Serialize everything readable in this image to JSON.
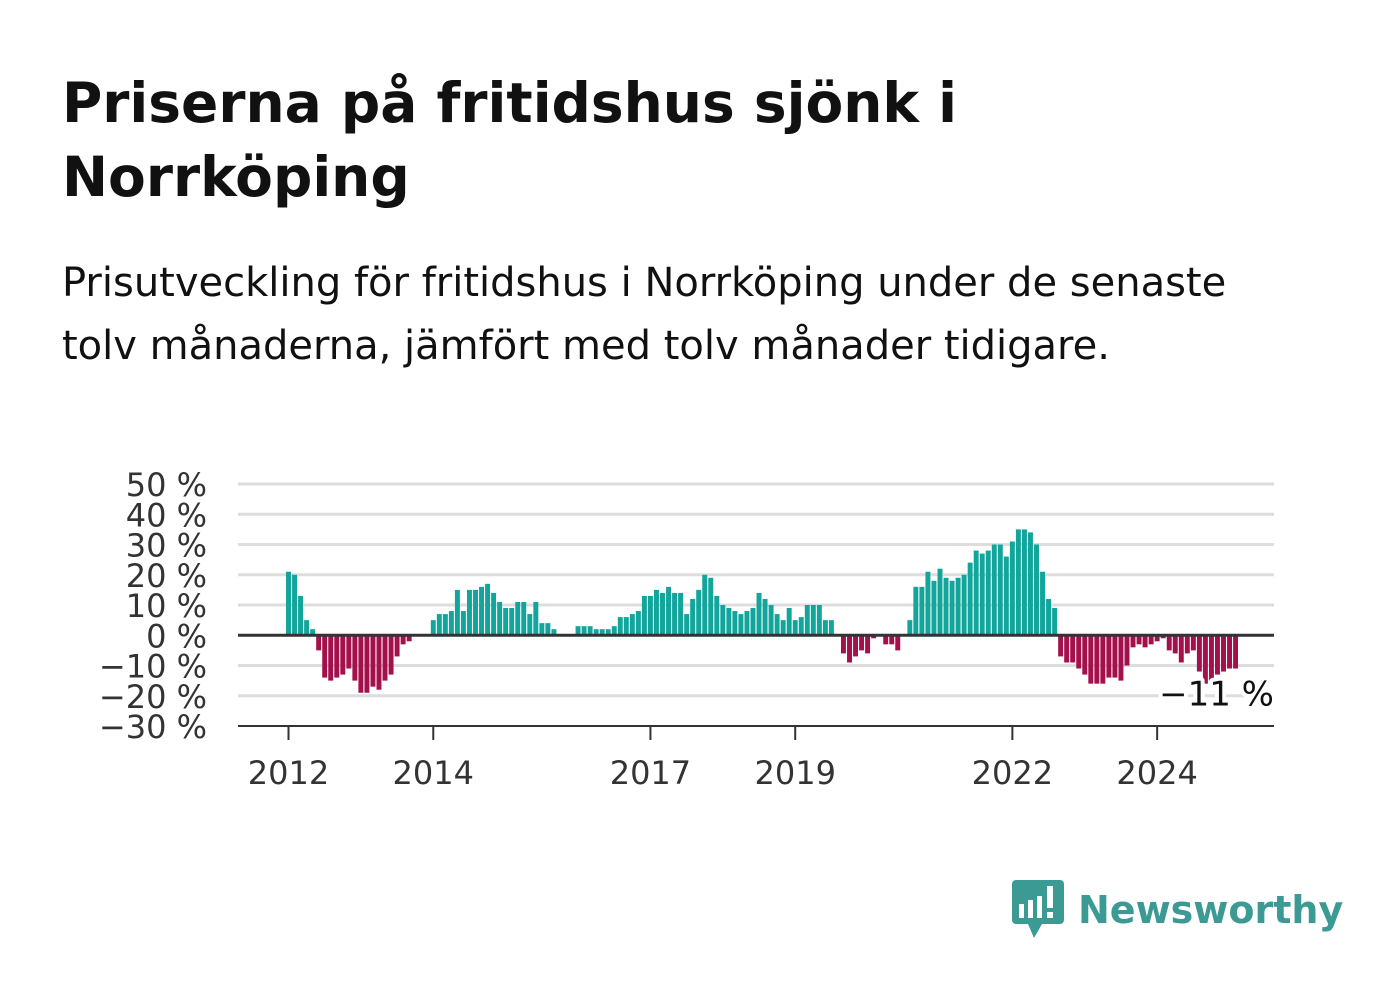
{
  "title": "Priserna på fritidshus sjönk i Norrköping",
  "subtitle": "Prisutveckling för fritidshus i Norrköping under de senaste tolv månaderna, jämfört med tolv månader tidigare.",
  "brand": {
    "name": "Newsworthy",
    "icon": "newsworthy-logo-icon",
    "color": "#3b9a93"
  },
  "colors": {
    "positive": "#12a59b",
    "negative": "#a3104c",
    "grid": "#dddddd",
    "axis": "#333333"
  },
  "chart_data": {
    "type": "bar",
    "title": "",
    "xlabel": "",
    "ylabel": "",
    "ylim": [
      -30,
      50
    ],
    "yticks": [
      50,
      40,
      30,
      20,
      10,
      0,
      -10,
      -20,
      -30
    ],
    "ytick_labels": [
      "50 %",
      "40 %",
      "30 %",
      "20 %",
      "10 %",
      "0 %",
      "−10 %",
      "−20 %",
      "−30 %"
    ],
    "xtick_labels": [
      "2012",
      "2014",
      "2017",
      "2019",
      "2022",
      "2024"
    ],
    "xtick_dates": [
      "2012-01",
      "2014-01",
      "2017-01",
      "2019-01",
      "2022-01",
      "2024-01"
    ],
    "start": "2012-01",
    "end": "2024-12",
    "grid": true,
    "last_value_label": "−11 %",
    "series": [
      {
        "values": [
          21,
          20,
          13,
          5,
          2,
          -5,
          -14,
          -15,
          -14,
          -13,
          -11,
          -15,
          -19,
          -19,
          -17,
          -18,
          -15,
          -13,
          -7,
          -3,
          -2,
          0,
          0,
          0,
          5,
          7,
          7,
          8,
          15,
          8,
          15,
          15,
          16,
          17,
          14,
          11,
          9,
          9,
          11,
          11,
          7,
          11,
          4,
          4,
          2,
          0,
          0,
          0,
          3,
          3,
          3,
          2,
          2,
          2,
          3,
          6,
          6,
          7,
          8,
          13,
          13,
          15,
          14,
          16,
          14,
          14,
          7,
          12,
          15,
          20,
          19,
          13,
          10,
          9,
          8,
          7,
          8,
          9,
          14,
          12,
          10,
          7,
          5,
          9,
          5,
          6,
          10,
          10,
          10,
          5,
          5,
          0,
          -6,
          -9,
          -7,
          -5,
          -6,
          -1,
          0,
          -3,
          -3,
          -5,
          0,
          5,
          16,
          16,
          21,
          18,
          22,
          19,
          18,
          19,
          20,
          24,
          28,
          27,
          28,
          30,
          30,
          26,
          31,
          35,
          35,
          34,
          30,
          21,
          12,
          9,
          -7,
          -9,
          -9,
          -11,
          -13,
          -16,
          -16,
          -16,
          -14,
          -14,
          -15,
          -10,
          -4,
          -3,
          -4,
          -3,
          -2,
          -1,
          -5,
          -6,
          -9,
          -6,
          -5,
          -12,
          -16,
          -15,
          -13,
          -12,
          -11,
          -11
        ]
      }
    ]
  }
}
